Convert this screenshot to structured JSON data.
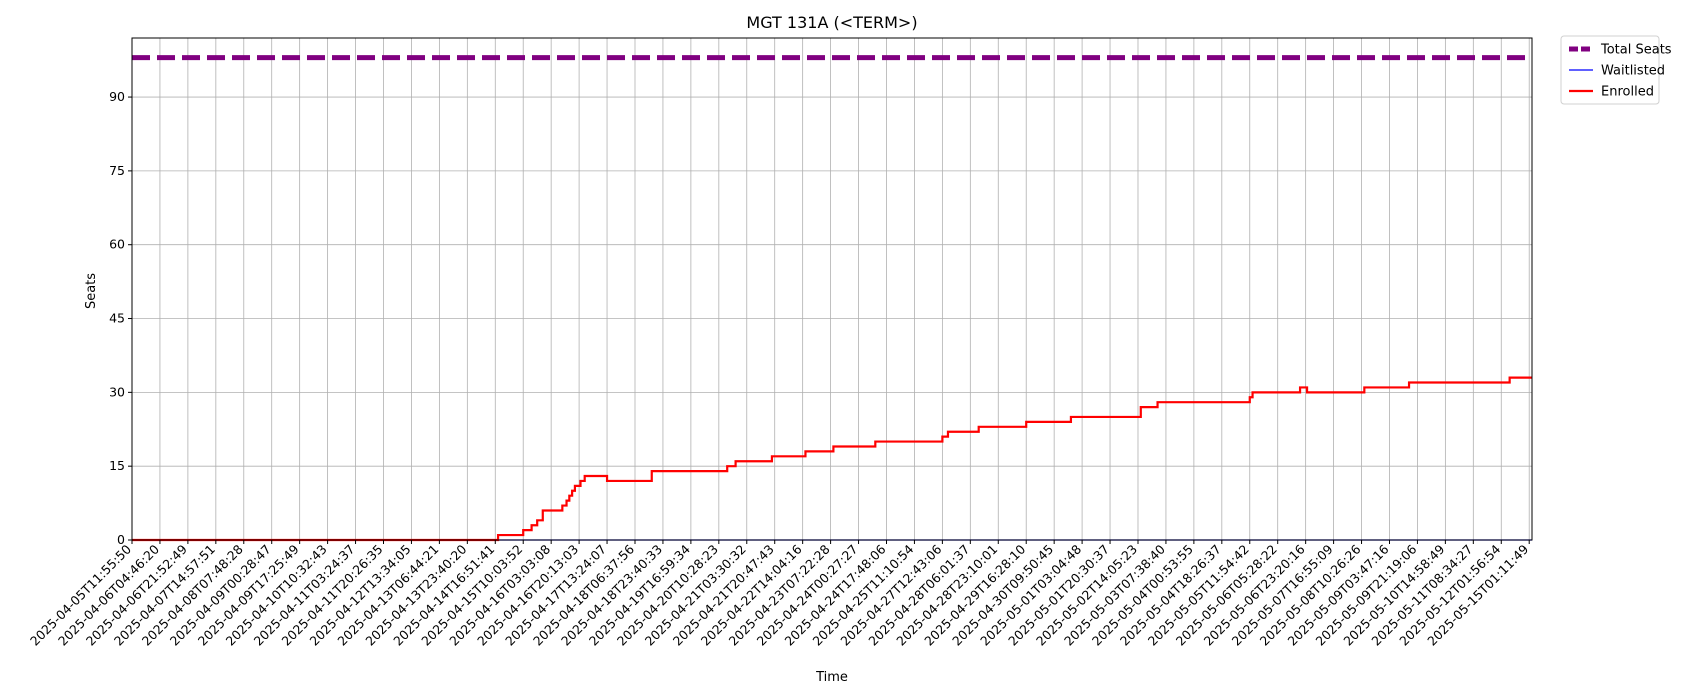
{
  "chart_data": {
    "type": "line",
    "title": "MGT 131A (<TERM>)",
    "xlabel": "Time",
    "ylabel": "Seats",
    "ylim": [
      0,
      102
    ],
    "yticks": [
      0,
      15,
      30,
      45,
      60,
      75,
      90
    ],
    "grid": true,
    "legend_position": "outside-top-right",
    "x_tick_labels": [
      "2025-04-05T11:55:50",
      "2025-04-06T04:46:20",
      "2025-04-06T21:52:49",
      "2025-04-07T14:57:51",
      "2025-04-08T07:48:28",
      "2025-04-09T00:28:47",
      "2025-04-09T17:25:49",
      "2025-04-10T10:32:43",
      "2025-04-11T03:24:37",
      "2025-04-11T20:26:35",
      "2025-04-12T13:34:05",
      "2025-04-13T06:44:21",
      "2025-04-13T23:40:20",
      "2025-04-14T16:51:41",
      "2025-04-15T10:03:52",
      "2025-04-16T03:03:08",
      "2025-04-16T20:13:03",
      "2025-04-17T13:24:07",
      "2025-04-18T06:37:56",
      "2025-04-18T23:40:33",
      "2025-04-19T16:59:34",
      "2025-04-20T10:28:23",
      "2025-04-21T03:30:32",
      "2025-04-21T20:47:43",
      "2025-04-22T14:04:16",
      "2025-04-23T07:22:28",
      "2025-04-24T00:27:27",
      "2025-04-24T17:48:06",
      "2025-04-25T11:10:54",
      "2025-04-27T12:43:06",
      "2025-04-28T06:01:37",
      "2025-04-28T23:10:01",
      "2025-04-29T16:28:10",
      "2025-04-30T09:50:45",
      "2025-05-01T03:04:48",
      "2025-05-01T20:30:37",
      "2025-05-02T14:05:23",
      "2025-05-03T07:38:40",
      "2025-05-04T00:53:55",
      "2025-05-04T18:26:37",
      "2025-05-05T11:54:42",
      "2025-05-06T05:28:22",
      "2025-05-06T23:20:16",
      "2025-05-07T16:55:09",
      "2025-05-08T10:26:26",
      "2025-05-09T03:47:16",
      "2025-05-09T21:19:06",
      "2025-05-10T14:58:49",
      "2025-05-11T08:34:27",
      "2025-05-12T01:56:54",
      "2025-05-15T01:11:49"
    ],
    "series": [
      {
        "name": "Total Seats",
        "color": "#800080",
        "style": "dashed",
        "points": [
          [
            0,
            98
          ],
          [
            50.1,
            98
          ]
        ]
      },
      {
        "name": "Waitlisted",
        "color": "#0000ff",
        "style": "solid",
        "points": [
          [
            0,
            0
          ],
          [
            50.1,
            0
          ]
        ]
      },
      {
        "name": "Enrolled",
        "color": "#ff0000",
        "style": "step",
        "points": [
          [
            0,
            0
          ],
          [
            13.1,
            1
          ],
          [
            14.0,
            2
          ],
          [
            14.3,
            3
          ],
          [
            14.5,
            4
          ],
          [
            14.7,
            6
          ],
          [
            15.4,
            7
          ],
          [
            15.55,
            8
          ],
          [
            15.65,
            9
          ],
          [
            15.75,
            10
          ],
          [
            15.85,
            11
          ],
          [
            16.05,
            12
          ],
          [
            16.2,
            13
          ],
          [
            17.0,
            12
          ],
          [
            18.6,
            14
          ],
          [
            21.3,
            15
          ],
          [
            21.6,
            16
          ],
          [
            22.9,
            17
          ],
          [
            24.1,
            18
          ],
          [
            25.1,
            19
          ],
          [
            26.6,
            20
          ],
          [
            29.0,
            21
          ],
          [
            29.2,
            22
          ],
          [
            30.3,
            23
          ],
          [
            32.0,
            24
          ],
          [
            33.6,
            25
          ],
          [
            36.1,
            27
          ],
          [
            36.7,
            28
          ],
          [
            40.0,
            29
          ],
          [
            40.1,
            30
          ],
          [
            41.8,
            31
          ],
          [
            42.05,
            30
          ],
          [
            44.1,
            31
          ],
          [
            45.7,
            32
          ],
          [
            49.3,
            33
          ],
          [
            50.1,
            33
          ]
        ]
      }
    ]
  }
}
